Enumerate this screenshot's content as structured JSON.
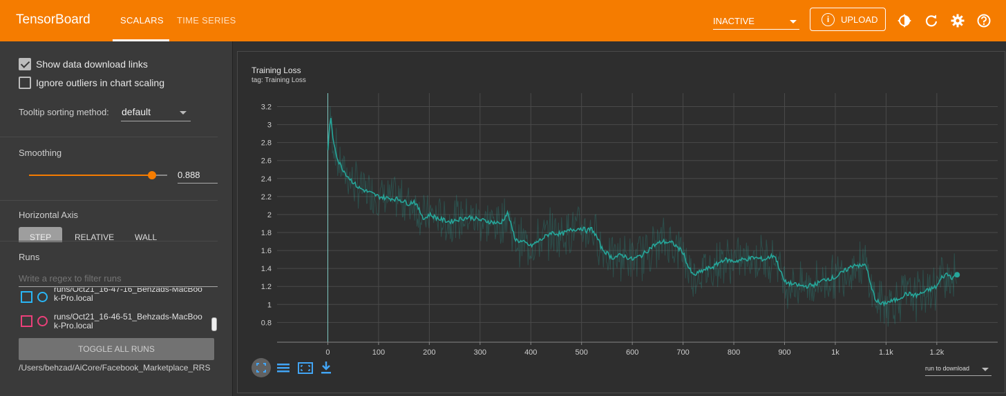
{
  "app": {
    "brand": "TensorBoard",
    "tabs": [
      {
        "label": "SCALARS",
        "active": true
      },
      {
        "label": "TIME SERIES",
        "active": false
      }
    ],
    "status_select": "INACTIVE",
    "upload_label": "UPLOAD",
    "accent_color": "#f57c00"
  },
  "sidebar": {
    "show_download_links": {
      "label": "Show data download links",
      "checked": true
    },
    "ignore_outliers": {
      "label": "Ignore outliers in chart scaling",
      "checked": false
    },
    "tooltip_label": "Tooltip sorting method:",
    "tooltip_value": "default",
    "smoothing_label": "Smoothing",
    "smoothing_value": "0.888",
    "smoothing_fraction": 0.888,
    "horizontal_axis_label": "Horizontal Axis",
    "axis_options": [
      "STEP",
      "RELATIVE",
      "WALL"
    ],
    "axis_active": "STEP",
    "runs_label": "Runs",
    "runs_filter_placeholder": "Write a regex to filter runs",
    "runs": [
      {
        "name": "runs/Oct21_16-47-16_Behzads-MacBoo k-Pro.local",
        "color": "#29b6f6"
      },
      {
        "name": "runs/Oct21_16-46-51_Behzads-MacBoo k-Pro.local",
        "color": "#ec407a"
      }
    ],
    "toggle_all_label": "TOGGLE ALL RUNS",
    "logdir": "/Users/behzad/AiCore/Facebook_Marketplace_RRS"
  },
  "card": {
    "title": "Training Loss",
    "tag": "tag: Training Loss",
    "download_select": "run to download"
  },
  "chart_data": {
    "type": "line",
    "title": "Training Loss",
    "ylim": [
      0.58,
      3.35
    ],
    "xlim": [
      -100,
      1320
    ],
    "y_ticks": [
      "0.8",
      "1",
      "1.2",
      "1.4",
      "1.6",
      "1.8",
      "2",
      "2.2",
      "2.4",
      "2.6",
      "2.8",
      "3",
      "3.2"
    ],
    "x_ticks": [
      "0",
      "100",
      "200",
      "300",
      "400",
      "500",
      "600",
      "700",
      "800",
      "900",
      "1k",
      "1.1k",
      "1.2k"
    ],
    "grid": true,
    "series": [
      {
        "color": "#26a69a",
        "x": [
          0,
          5,
          10,
          20,
          30,
          40,
          50,
          60,
          80,
          100,
          120,
          140,
          160,
          170,
          180,
          190,
          200,
          220,
          240,
          260,
          280,
          300,
          320,
          340,
          355,
          360,
          370,
          390,
          400,
          420,
          440,
          460,
          480,
          500,
          510,
          520,
          530,
          540,
          560,
          580,
          600,
          620,
          640,
          660,
          680,
          700,
          710,
          720,
          740,
          760,
          780,
          800,
          820,
          840,
          860,
          880,
          890,
          900,
          920,
          940,
          960,
          980,
          1000,
          1020,
          1040,
          1050,
          1060,
          1070,
          1080,
          1090,
          1100,
          1120,
          1140,
          1160,
          1180,
          1200,
          1210,
          1220,
          1230,
          1240
        ],
        "y": [
          2.7,
          3.1,
          2.85,
          2.6,
          2.5,
          2.42,
          2.36,
          2.3,
          2.25,
          2.2,
          2.18,
          2.17,
          2.12,
          2.15,
          2.05,
          1.95,
          2.0,
          1.95,
          1.92,
          1.95,
          1.97,
          1.94,
          1.92,
          1.9,
          2.02,
          1.9,
          1.72,
          1.68,
          1.65,
          1.72,
          1.8,
          1.78,
          1.83,
          1.85,
          1.82,
          1.84,
          1.75,
          1.62,
          1.52,
          1.55,
          1.5,
          1.55,
          1.65,
          1.7,
          1.68,
          1.58,
          1.42,
          1.32,
          1.38,
          1.42,
          1.5,
          1.48,
          1.5,
          1.52,
          1.5,
          1.55,
          1.4,
          1.25,
          1.22,
          1.2,
          1.22,
          1.28,
          1.3,
          1.38,
          1.45,
          1.42,
          1.45,
          1.2,
          1.05,
          1.0,
          1.02,
          1.05,
          1.12,
          1.1,
          1.15,
          1.2,
          1.3,
          1.34,
          1.3,
          1.33
        ]
      }
    ]
  }
}
